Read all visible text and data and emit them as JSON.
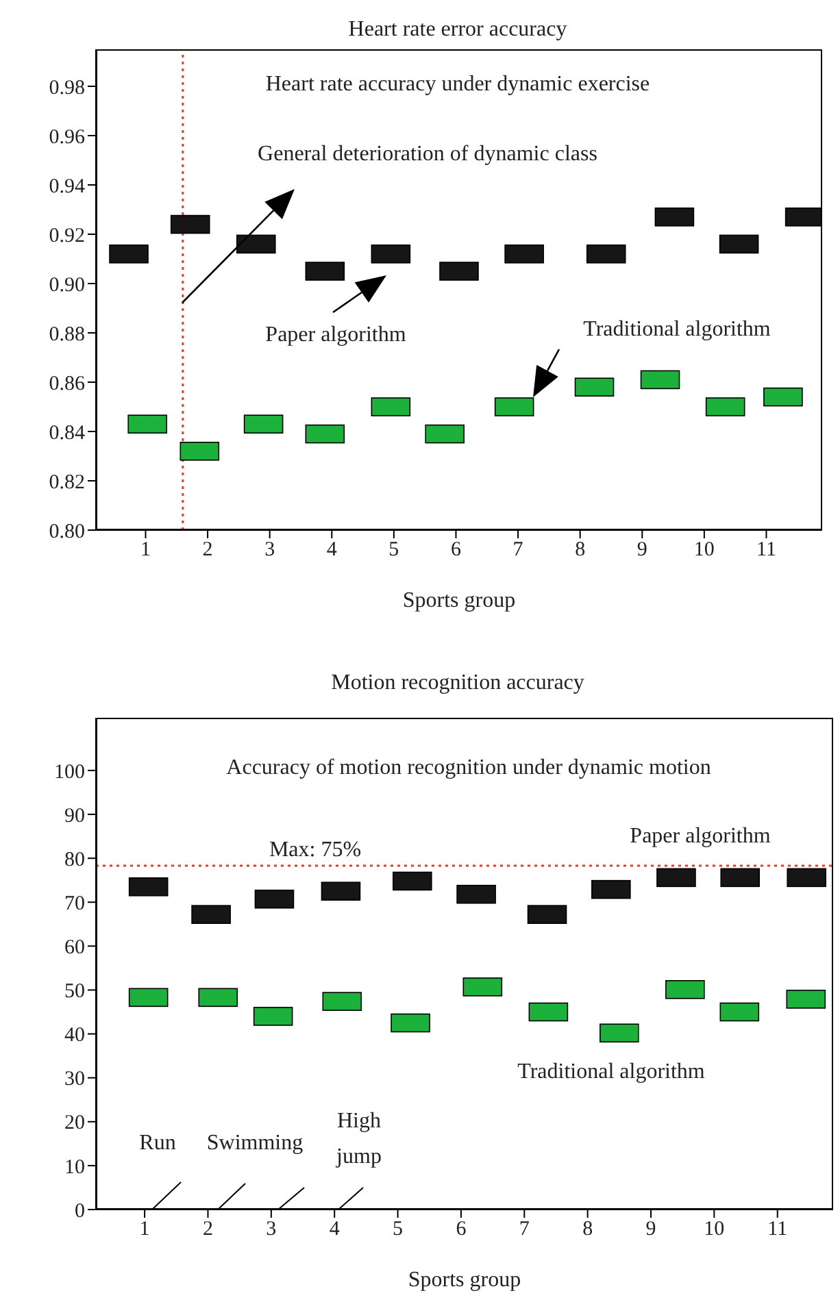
{
  "chart_data": [
    {
      "type": "scatter",
      "title": "Heart rate error accuracy",
      "xlabel": "Sports group",
      "marker": "square",
      "annotations": [
        "Heart rate accuracy under dynamic exercise",
        "General deterioration of dynamic class"
      ],
      "xlim": [
        0.2,
        11.9
      ],
      "xticks": [
        1,
        2,
        3,
        4,
        5,
        6,
        7,
        8,
        9,
        10,
        11
      ],
      "ylim": [
        0.8,
        0.995
      ],
      "yticks": [
        {
          "value": 0.8,
          "label": "0.80"
        },
        {
          "value": 0.82,
          "label": "0.82"
        },
        {
          "value": 0.84,
          "label": "0.84"
        },
        {
          "value": 0.86,
          "label": "0.86"
        },
        {
          "value": 0.88,
          "label": "0.88"
        },
        {
          "value": 0.9,
          "label": "0.90"
        },
        {
          "value": 0.92,
          "label": "0.92"
        },
        {
          "value": 0.94,
          "label": "0.94"
        },
        {
          "value": 0.96,
          "label": "0.96"
        },
        {
          "value": 0.98,
          "label": "0.98"
        }
      ],
      "ref_lines": [
        {
          "axis": "x",
          "value": 1.6,
          "color": "#e8392b",
          "line_style": "dotted"
        }
      ],
      "series": [
        {
          "name": "Paper algorithm",
          "color": "#161616",
          "x": [
            0.73,
            1.72,
            2.78,
            3.89,
            4.95,
            6.05,
            7.1,
            8.42,
            9.52,
            10.56,
            11.62
          ],
          "values": [
            0.912,
            0.924,
            0.916,
            0.905,
            0.912,
            0.905,
            0.912,
            0.912,
            0.927,
            0.916,
            0.927
          ]
        },
        {
          "name": "Traditional algorithm",
          "color": "#1bb13a",
          "x": [
            1.03,
            1.87,
            2.9,
            3.89,
            4.95,
            5.82,
            6.94,
            8.23,
            9.29,
            10.34,
            11.27
          ],
          "values": [
            0.843,
            0.832,
            0.843,
            0.839,
            0.85,
            0.839,
            0.85,
            0.858,
            0.861,
            0.85,
            0.854
          ]
        }
      ]
    },
    {
      "type": "scatter",
      "title": "Motion recognition accuracy",
      "xlabel": "Sports group",
      "marker": "square",
      "annotations": [
        "Accuracy of motion recognition under dynamic motion",
        "Run",
        "Swimming",
        "High jump",
        "Max: 75%"
      ],
      "xlim": [
        0.23,
        11.88
      ],
      "xticks": [
        1,
        2,
        3,
        4,
        5,
        6,
        7,
        8,
        9,
        10,
        11
      ],
      "ylim": [
        0,
        112
      ],
      "yticks": [
        0,
        10,
        20,
        30,
        40,
        50,
        60,
        70,
        80,
        90,
        100
      ],
      "ref_lines": [
        {
          "axis": "y",
          "value": 78.3,
          "color": "#e8392b",
          "line_style": "dotted"
        }
      ],
      "series": [
        {
          "name": "Paper algorithm",
          "color": "#161616",
          "x": [
            1.06,
            2.05,
            3.05,
            4.1,
            5.23,
            6.24,
            7.36,
            8.37,
            9.4,
            10.41,
            11.46
          ],
          "values": [
            73.5,
            67.2,
            70.7,
            72.5,
            74.8,
            71.8,
            67.2,
            72.9,
            75.6,
            75.6,
            75.6
          ]
        },
        {
          "name": "Traditional algorithm",
          "color": "#1bb13a",
          "x": [
            1.06,
            2.16,
            3.03,
            4.12,
            5.2,
            6.34,
            7.38,
            8.5,
            9.54,
            10.4,
            11.45
          ],
          "values": [
            48.3,
            48.3,
            44,
            47.4,
            42.5,
            50.7,
            45,
            40.2,
            50.1,
            45,
            47.9
          ]
        }
      ]
    }
  ]
}
